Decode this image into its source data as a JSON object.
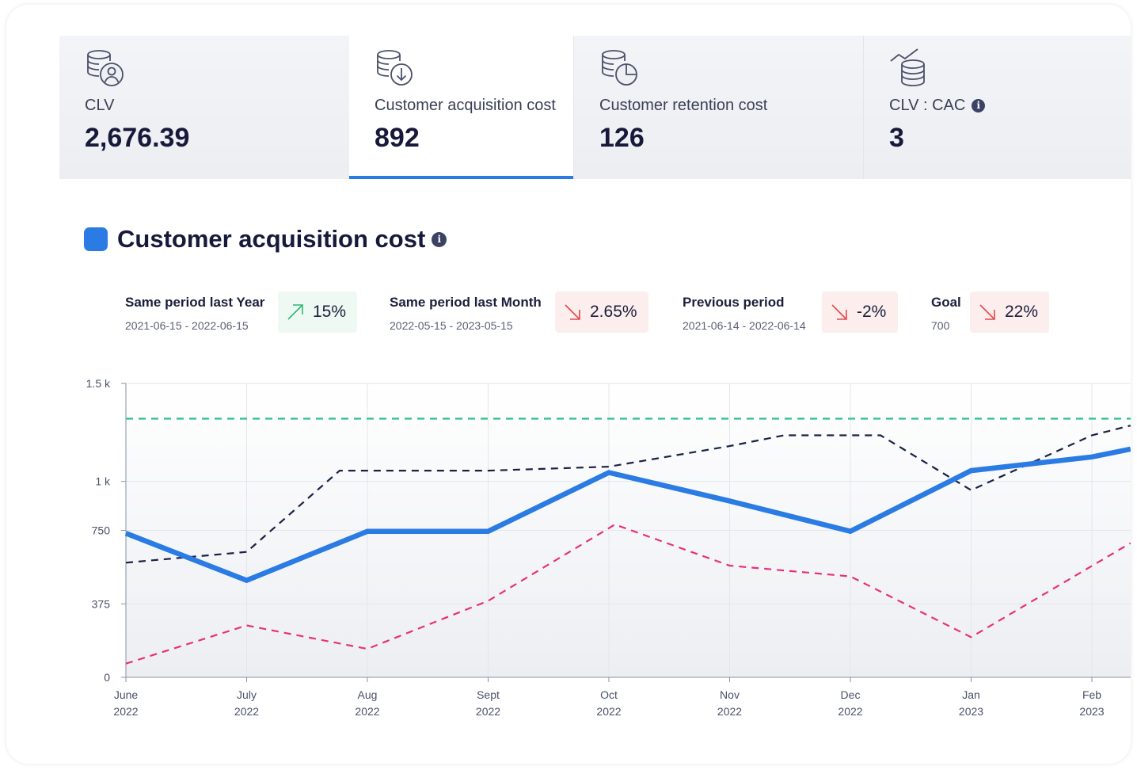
{
  "kpis": [
    {
      "label": "CLV",
      "value": "2,676.39",
      "icon": "database-user-icon",
      "active": false
    },
    {
      "label": "Customer acquisition cost",
      "value": "892",
      "icon": "database-download-icon",
      "active": true
    },
    {
      "label": "Customer retention cost",
      "value": "126",
      "icon": "database-pie-icon",
      "active": false
    },
    {
      "label": "CLV : CAC",
      "value": "3",
      "icon": "database-trend-icon",
      "active": false,
      "info": true
    }
  ],
  "section": {
    "title": "Customer acquisition cost",
    "info_icon": "info-icon",
    "accent": "#2a7be4"
  },
  "comparisons": [
    {
      "label": "Same period last Year",
      "range": "2021-06-15 - 2022-06-15",
      "change": "15%",
      "direction": "up"
    },
    {
      "label": "Same period last Month",
      "range": "2022-05-15 - 2023-05-15",
      "change": "2.65%",
      "direction": "down"
    },
    {
      "label": "Previous period",
      "range": "2021-06-14 - 2022-06-14",
      "change": "-2%",
      "direction": "down"
    },
    {
      "label": "Goal",
      "range": "700",
      "change": "22%",
      "direction": "down"
    }
  ],
  "colors": {
    "up": "#2eb872",
    "down": "#e5484d",
    "main": "#2a7be4",
    "goal": "#2fbf8f",
    "prev": "#1c2045",
    "last_year": "#e8307a"
  },
  "chart_data": {
    "type": "line",
    "ylim": [
      0,
      1500
    ],
    "y_ticks": [
      {
        "value": 0,
        "label": "0"
      },
      {
        "value": 375,
        "label": "375"
      },
      {
        "value": 750,
        "label": "750"
      },
      {
        "value": 1000,
        "label": "1 k"
      },
      {
        "value": 1500,
        "label": "1.5 k"
      }
    ],
    "x_labels": [
      [
        "June",
        "2022"
      ],
      [
        "July",
        "2022"
      ],
      [
        "Aug",
        "2022"
      ],
      [
        "Sept",
        "2022"
      ],
      [
        "Oct",
        "2022"
      ],
      [
        "Nov",
        "2022"
      ],
      [
        "Dec",
        "2022"
      ],
      [
        "Jan",
        "2023"
      ],
      [
        "Feb",
        "2023"
      ]
    ],
    "goal": 1320,
    "series": [
      {
        "style": "solid",
        "x": [
          0,
          1,
          2,
          3,
          4,
          5,
          6,
          7,
          8,
          8.32
        ],
        "values": [
          735,
          495,
          745,
          745,
          1045,
          900,
          745,
          1055,
          1125,
          1165
        ]
      },
      {
        "style": "dashed",
        "x": [
          0,
          1,
          1.77,
          3,
          4,
          5,
          5.45,
          6.25,
          7,
          8,
          8.32
        ],
        "values": [
          585,
          640,
          1055,
          1055,
          1075,
          1180,
          1235,
          1235,
          955,
          1235,
          1285
        ]
      },
      {
        "style": "dashed",
        "x": [
          0,
          1,
          2,
          3,
          4.05,
          5,
          6,
          7,
          8.32
        ],
        "values": [
          70,
          265,
          145,
          390,
          780,
          570,
          515,
          205,
          685
        ]
      }
    ]
  }
}
